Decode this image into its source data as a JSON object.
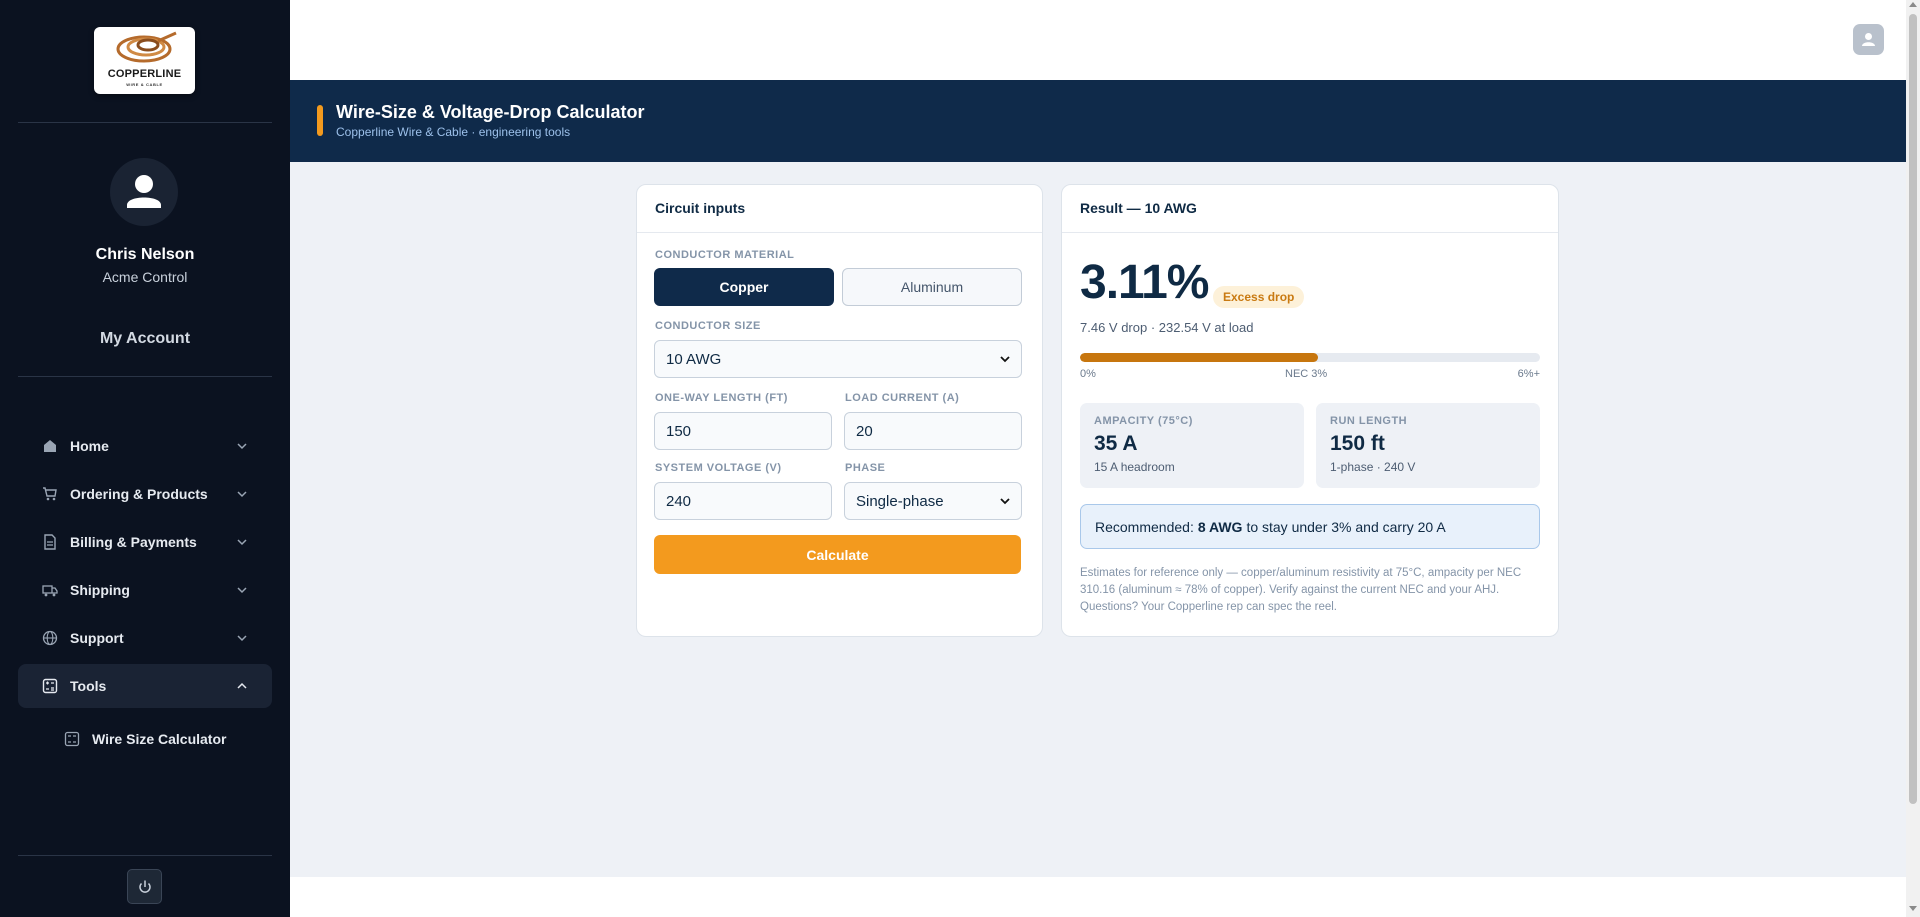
{
  "brand": {
    "name": "COPPERLINE",
    "tagline": "WIRE & CABLE"
  },
  "user": {
    "name": "Chris Nelson",
    "company": "Acme Control",
    "account_link": "My Account"
  },
  "nav": {
    "items": [
      {
        "label": "Home",
        "icon": "home-icon"
      },
      {
        "label": "Ordering & Products",
        "icon": "cart-icon"
      },
      {
        "label": "Billing & Payments",
        "icon": "document-icon"
      },
      {
        "label": "Shipping",
        "icon": "truck-icon"
      },
      {
        "label": "Support",
        "icon": "globe-icon"
      },
      {
        "label": "Tools",
        "icon": "calculator-icon",
        "expanded": true
      }
    ],
    "subitem": {
      "label": "Wire Size Calculator",
      "icon": "calculator-icon"
    }
  },
  "header": {
    "title": "Wire-Size & Voltage-Drop Calculator",
    "subtitle": "Copperline Wire & Cable · engineering tools"
  },
  "inputs": {
    "title": "Circuit inputs",
    "material_label": "CONDUCTOR MATERIAL",
    "material_options": [
      "Copper",
      "Aluminum"
    ],
    "material_selected": "Copper",
    "size_label": "CONDUCTOR SIZE",
    "size_value": "10 AWG",
    "length_label": "ONE-WAY LENGTH (FT)",
    "length_value": "150",
    "current_label": "LOAD CURRENT (A)",
    "current_value": "20",
    "voltage_label": "SYSTEM VOLTAGE (V)",
    "voltage_value": "240",
    "phase_label": "PHASE",
    "phase_value": "Single-phase",
    "calculate_label": "Calculate"
  },
  "result": {
    "title": "Result — 10 AWG",
    "percent": "3.11%",
    "badge": "Excess drop",
    "drop_line": "7.46 V drop · 232.54 V at load",
    "bar_fraction": 0.518,
    "ticks": [
      "0%",
      "NEC 3%",
      "6%+"
    ],
    "ampacity": {
      "label": "AMPACITY (75°C)",
      "value": "35 A",
      "sub": "15 A headroom"
    },
    "run": {
      "label": "RUN LENGTH",
      "value": "150 ft",
      "sub": "1-phase · 240 V"
    },
    "recommend": {
      "prefix": "Recommended:",
      "size": "8 AWG",
      "suffix": "to stay under 3% and carry 20 A"
    },
    "note": "Estimates for reference only — copper/aluminum resistivity at 75°C, ampacity per NEC 310.16 (aluminum ≈ 78% of copper). Verify against the current NEC and your AHJ. Questions? Your Copperline rep can spec the reel."
  },
  "colors": {
    "sidebar": "#0b1220",
    "navy": "#0f2a4a",
    "accent": "#f39a1e",
    "copper": "#c7760e",
    "content_bg": "#eef1f6"
  }
}
